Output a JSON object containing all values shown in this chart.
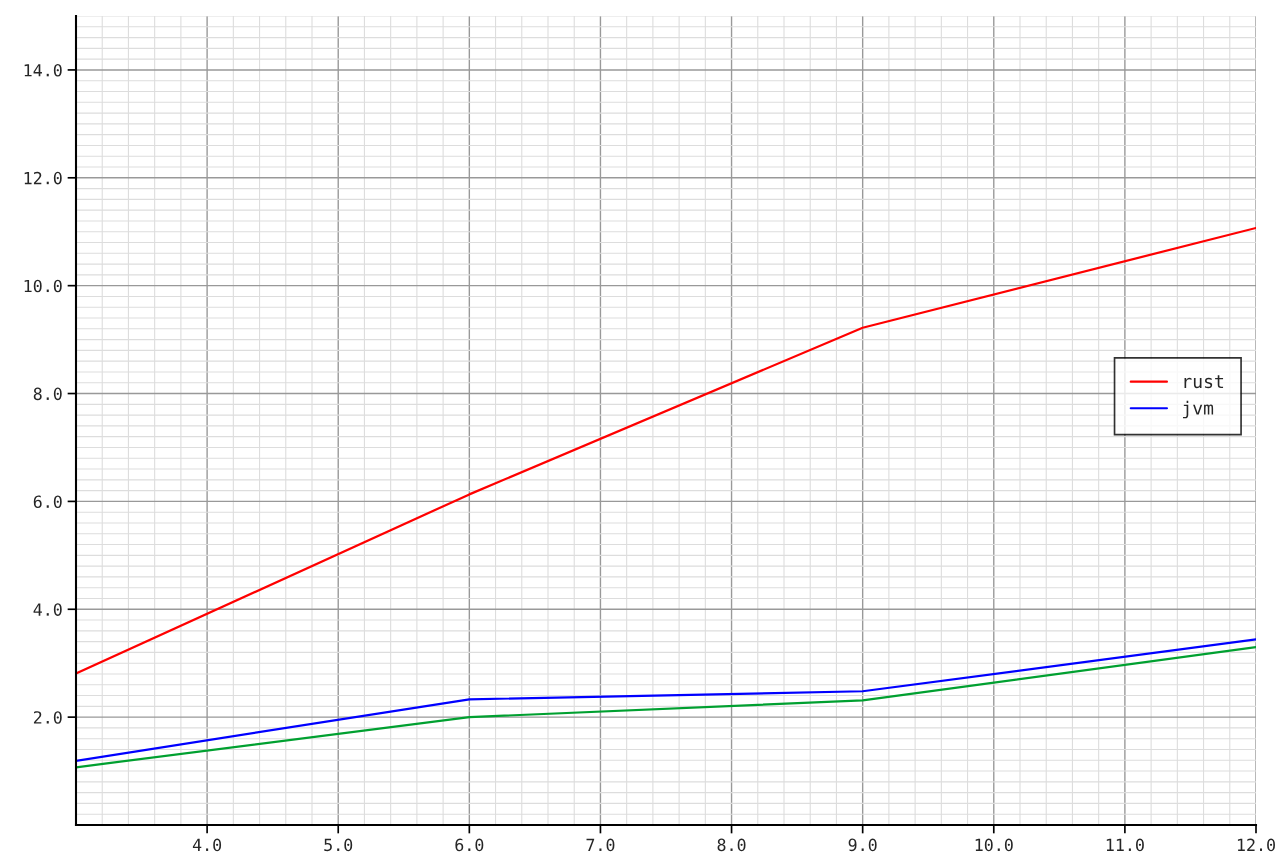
{
  "chart_data": {
    "type": "line",
    "xlim": [
      3.0,
      12.0
    ],
    "ylim": [
      0,
      15.0
    ],
    "xticks": [
      {
        "value": 4,
        "label": "4.0"
      },
      {
        "value": 5,
        "label": "5.0"
      },
      {
        "value": 6,
        "label": "6.0"
      },
      {
        "value": 7,
        "label": "7.0"
      },
      {
        "value": 8,
        "label": "8.0"
      },
      {
        "value": 9,
        "label": "9.0"
      },
      {
        "value": 10,
        "label": "10.0"
      },
      {
        "value": 11,
        "label": "11.0"
      },
      {
        "value": 12,
        "label": "12.0"
      }
    ],
    "yticks": [
      {
        "value": 2,
        "label": "2.0"
      },
      {
        "value": 4,
        "label": "4.0"
      },
      {
        "value": 6,
        "label": "6.0"
      },
      {
        "value": 8,
        "label": "8.0"
      },
      {
        "value": 10,
        "label": "10.0"
      },
      {
        "value": 12,
        "label": "12.0"
      },
      {
        "value": 14,
        "label": "14.0"
      }
    ],
    "x": [
      3,
      6,
      9,
      12
    ],
    "series": [
      {
        "name": "rust",
        "color": "#ff0000",
        "values": [
          2.81,
          6.13,
          9.22,
          11.07
        ]
      },
      {
        "name": "jvm",
        "color": "#0000ff",
        "values": [
          1.19,
          2.33,
          2.48,
          3.44
        ]
      },
      {
        "color": "#00a030",
        "values": [
          1.07,
          2.0,
          2.31,
          3.3
        ]
      }
    ],
    "grid": true,
    "legend": "right",
    "marker": "none",
    "line_style": "solid"
  }
}
